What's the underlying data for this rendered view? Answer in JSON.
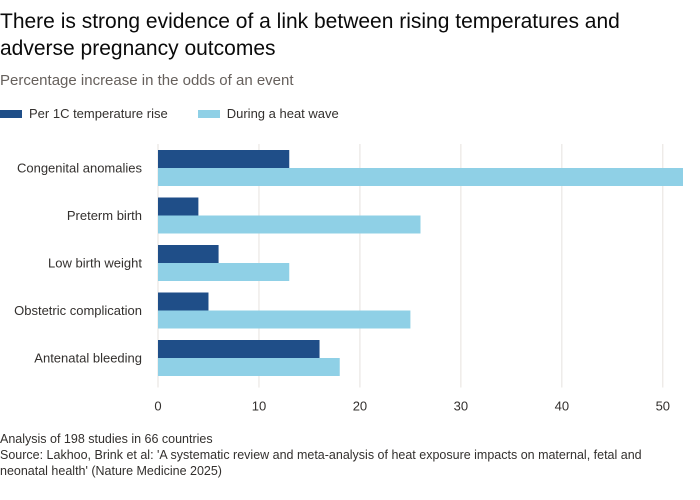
{
  "title": "There is strong evidence of a link between rising temperatures and adverse pregnancy outcomes",
  "subtitle": "Percentage increase in the odds of an event",
  "colors": {
    "series1": "#1f4e88",
    "series2": "#8fd0e6",
    "grid": "#e6e2de",
    "text": "#33302e"
  },
  "chart_data": {
    "type": "bar",
    "orientation": "horizontal",
    "categories": [
      "Congenital anomalies",
      "Preterm birth",
      "Low birth weight",
      "Obstetric complication",
      "Antenatal bleeding"
    ],
    "series": [
      {
        "name": "Per 1C temperature rise",
        "values": [
          13,
          4,
          6,
          5,
          16
        ]
      },
      {
        "name": "During a heat wave",
        "values": [
          52,
          26,
          13,
          25,
          18
        ]
      }
    ],
    "xlim": [
      0,
      52
    ],
    "xticks": [
      0,
      10,
      20,
      30,
      40,
      50
    ],
    "grid": true,
    "legend_position": "top-left"
  },
  "footnote": {
    "line1": "Analysis of 198 studies in 66 countries",
    "line2": "Source: Lakhoo, Brink et al: 'A systematic review and meta-analysis of heat exposure impacts on maternal, fetal and neonatal health' (Nature Medicine 2025)"
  }
}
